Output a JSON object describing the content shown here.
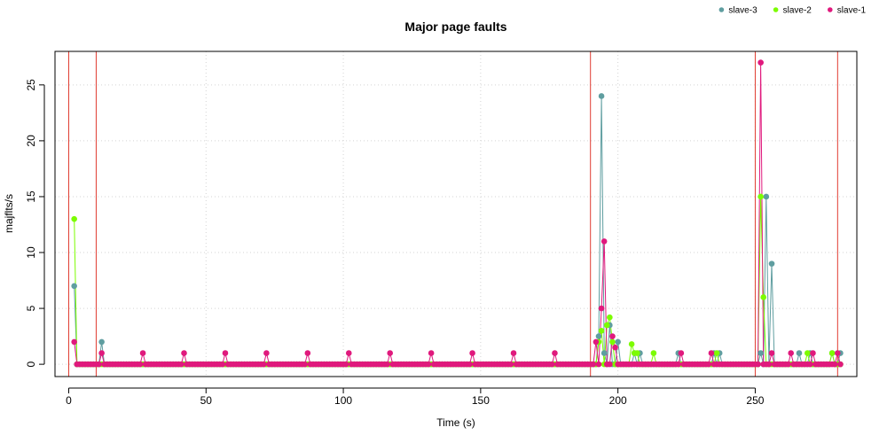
{
  "chart_data": {
    "type": "line",
    "title": "Major page faults",
    "xlabel": "Time (s)",
    "ylabel": "majflts/s",
    "xlim": [
      -5,
      287
    ],
    "ylim": [
      -1.1,
      28.0
    ],
    "xticks": [
      0,
      50,
      100,
      150,
      200,
      250
    ],
    "yticks": [
      0,
      5,
      10,
      15,
      20,
      25
    ],
    "grid": true,
    "legend_position": "top-right",
    "vlines": [
      0,
      10,
      190,
      250,
      280
    ],
    "vline_color": "#e03c31",
    "series": [
      {
        "name": "slave-3",
        "color": "#5f9ea0",
        "baseline": 0,
        "points": [
          [
            2,
            7
          ],
          [
            12,
            2
          ],
          [
            193,
            2.5
          ],
          [
            194,
            24
          ],
          [
            195,
            1
          ],
          [
            197,
            3.5
          ],
          [
            200,
            2
          ],
          [
            206,
            1
          ],
          [
            208,
            1
          ],
          [
            222,
            1
          ],
          [
            235,
            1
          ],
          [
            237,
            1
          ],
          [
            252,
            1
          ],
          [
            254,
            15
          ],
          [
            256,
            9
          ],
          [
            266,
            1
          ],
          [
            270,
            1
          ],
          [
            278,
            1
          ],
          [
            281,
            1
          ]
        ]
      },
      {
        "name": "slave-2",
        "color": "#7cfc00",
        "baseline": 0,
        "points": [
          [
            2,
            13
          ],
          [
            193,
            2
          ],
          [
            194,
            3
          ],
          [
            196,
            3.5
          ],
          [
            197,
            4.2
          ],
          [
            198,
            2
          ],
          [
            205,
            1.8
          ],
          [
            206,
            1
          ],
          [
            207,
            1
          ],
          [
            213,
            1
          ],
          [
            236,
            1
          ],
          [
            252,
            15
          ],
          [
            253,
            6
          ],
          [
            269,
            1
          ],
          [
            278,
            1
          ]
        ]
      },
      {
        "name": "slave-1",
        "color": "#e0197d",
        "baseline": 0,
        "points": [
          [
            2,
            2
          ],
          [
            12,
            1
          ],
          [
            27,
            1
          ],
          [
            42,
            1
          ],
          [
            57,
            1
          ],
          [
            72,
            1
          ],
          [
            87,
            1
          ],
          [
            102,
            1
          ],
          [
            117,
            1
          ],
          [
            132,
            1
          ],
          [
            147,
            1
          ],
          [
            162,
            1
          ],
          [
            177,
            1
          ],
          [
            192,
            2
          ],
          [
            194,
            5
          ],
          [
            195,
            11
          ],
          [
            198,
            2.5
          ],
          [
            199,
            1.5
          ],
          [
            223,
            1
          ],
          [
            234,
            1
          ],
          [
            252,
            27
          ],
          [
            256,
            1
          ],
          [
            263,
            1
          ],
          [
            271,
            1
          ],
          [
            280,
            1
          ]
        ]
      }
    ]
  }
}
